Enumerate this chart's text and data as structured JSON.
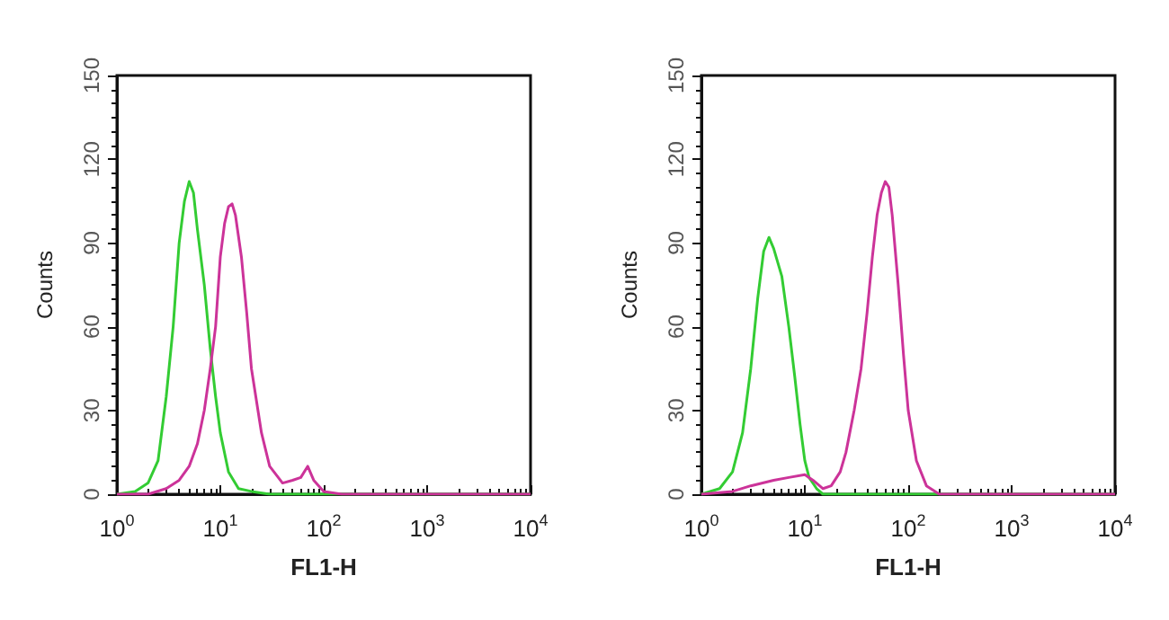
{
  "chart_data": [
    {
      "type": "line",
      "xlabel": "FL1-H",
      "ylabel": "Counts",
      "log": "x",
      "grid": false,
      "marker": "none",
      "xlim": [
        1,
        10000
      ],
      "ylim": [
        0,
        150
      ],
      "xticks": [
        {
          "value": 1,
          "label": "10$^{0}$"
        },
        {
          "value": 10,
          "label": "10$^{1}$"
        },
        {
          "value": 100,
          "label": "10$^{2}$"
        },
        {
          "value": 1000,
          "label": "10$^{3}$"
        },
        {
          "value": 10000,
          "label": "10$^{4}$"
        }
      ],
      "yticks": [
        0,
        30,
        60,
        90,
        120,
        150
      ],
      "series": [
        {
          "color": "#33cc33",
          "x": [
            1,
            1.5,
            2,
            2.5,
            3,
            3.5,
            4,
            4.5,
            5,
            5.5,
            6,
            7,
            8,
            9,
            10,
            12,
            15,
            20,
            30,
            100,
            10000
          ],
          "values": [
            0,
            1,
            4,
            12,
            35,
            60,
            90,
            105,
            112,
            108,
            95,
            75,
            52,
            35,
            22,
            8,
            2,
            1,
            0,
            0,
            0
          ]
        },
        {
          "color": "#cc3399",
          "x": [
            1,
            2,
            3,
            4,
            5,
            6,
            7,
            8,
            9,
            10,
            11,
            12,
            13,
            14,
            16,
            18,
            20,
            25,
            30,
            40,
            50,
            60,
            70,
            80,
            100,
            150,
            10000
          ],
          "values": [
            0,
            0,
            2,
            5,
            10,
            18,
            30,
            45,
            60,
            85,
            97,
            103,
            104,
            100,
            85,
            65,
            45,
            22,
            10,
            4,
            5,
            6,
            10,
            5,
            1,
            0,
            0
          ]
        }
      ]
    },
    {
      "type": "line",
      "xlabel": "FL1-H",
      "ylabel": "Counts",
      "log": "x",
      "grid": false,
      "marker": "none",
      "xlim": [
        1,
        10000
      ],
      "ylim": [
        0,
        150
      ],
      "xticks": [
        {
          "value": 1,
          "label": "10$^{0}$"
        },
        {
          "value": 10,
          "label": "10$^{1}$"
        },
        {
          "value": 100,
          "label": "10$^{2}$"
        },
        {
          "value": 1000,
          "label": "10$^{3}$"
        },
        {
          "value": 10000,
          "label": "10$^{4}$"
        }
      ],
      "yticks": [
        0,
        30,
        60,
        90,
        120,
        150
      ],
      "series": [
        {
          "color": "#33cc33",
          "x": [
            1,
            1.5,
            2,
            2.5,
            3,
            3.5,
            4,
            4.5,
            5,
            6,
            7,
            8,
            9,
            10,
            11,
            13,
            15,
            20,
            100,
            10000
          ],
          "values": [
            0,
            2,
            8,
            22,
            45,
            70,
            87,
            92,
            88,
            78,
            60,
            42,
            25,
            12,
            6,
            2,
            0,
            0,
            0,
            0
          ]
        },
        {
          "color": "#cc3399",
          "x": [
            1,
            2,
            3,
            5,
            7,
            10,
            12,
            15,
            18,
            22,
            25,
            30,
            35,
            40,
            45,
            50,
            55,
            60,
            65,
            70,
            80,
            90,
            100,
            120,
            150,
            200,
            10000
          ],
          "values": [
            0,
            1,
            3,
            5,
            6,
            7,
            5,
            2,
            3,
            8,
            15,
            30,
            45,
            65,
            85,
            100,
            108,
            112,
            110,
            100,
            75,
            50,
            30,
            12,
            3,
            0,
            0
          ]
        }
      ]
    }
  ]
}
